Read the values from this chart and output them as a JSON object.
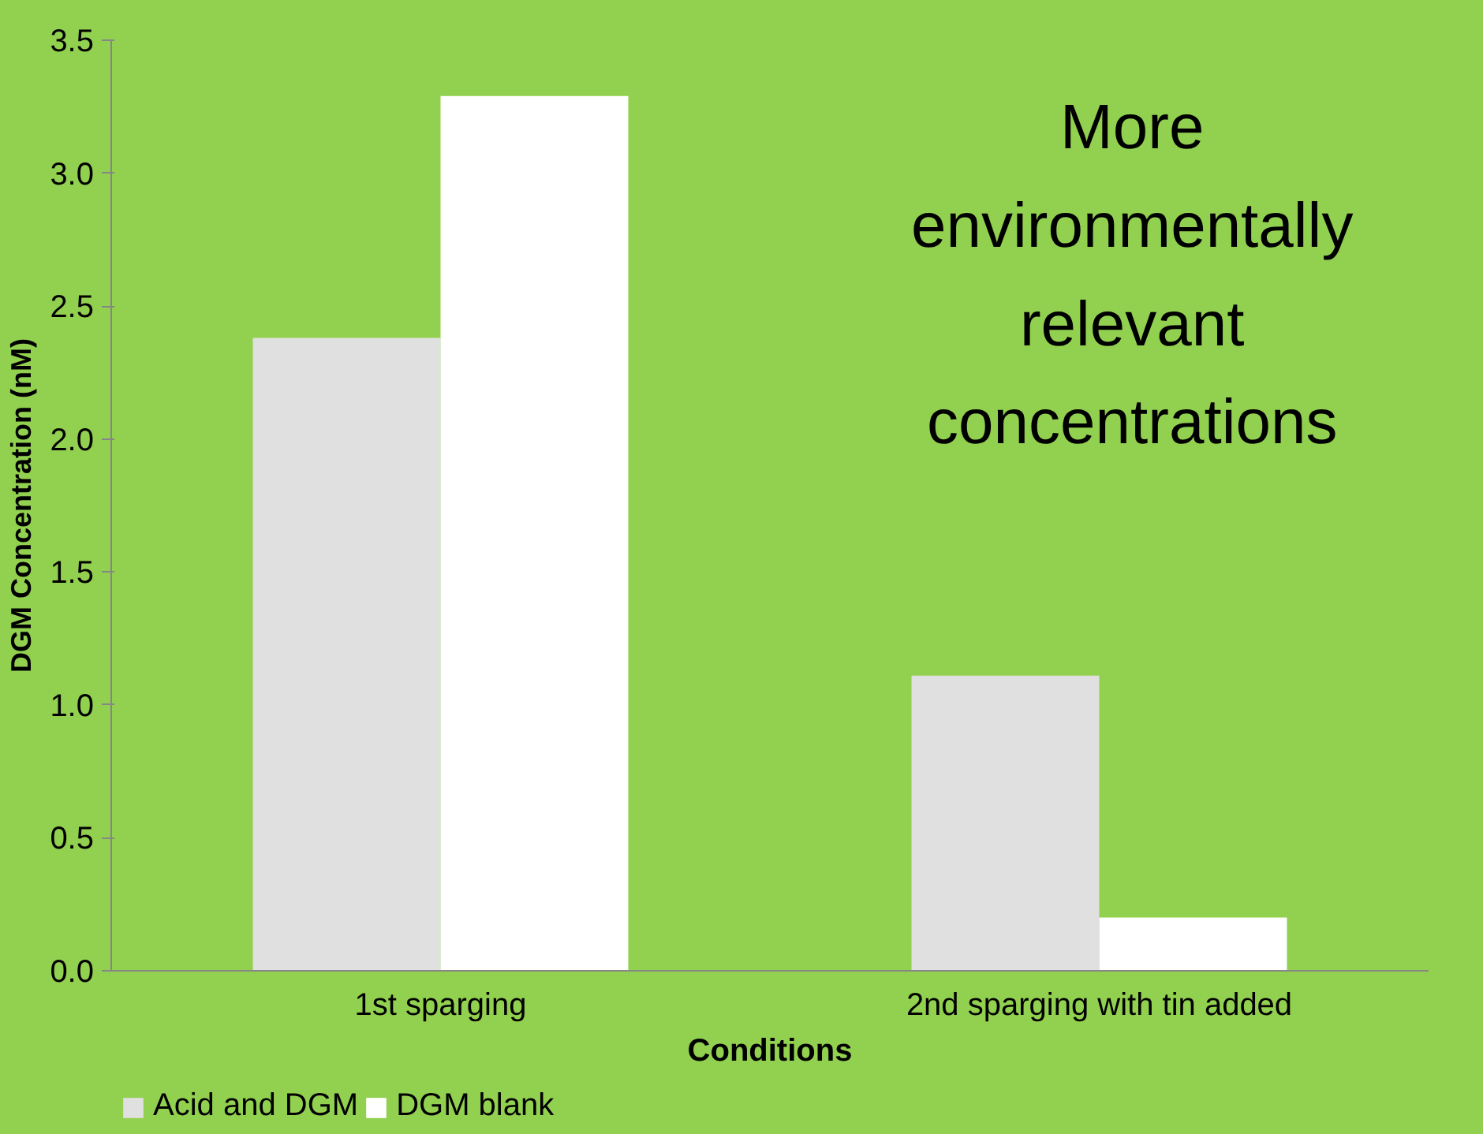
{
  "chart_data": {
    "type": "bar",
    "xlabel": "Conditions",
    "ylabel": "DGM Concentration (nM)",
    "categories": [
      "1st sparging",
      "2nd sparging with tin added"
    ],
    "series": [
      {
        "name": "Acid and DGM",
        "color": "#e0e0e0",
        "values": [
          2.38,
          1.11
        ]
      },
      {
        "name": "DGM blank",
        "color": "#ffffff",
        "values": [
          3.29,
          0.2
        ]
      }
    ],
    "ylim": [
      0,
      3.5
    ],
    "yticks": [
      {
        "value": 0,
        "label": "0.0"
      },
      {
        "value": 0.5,
        "label": "0.5"
      },
      {
        "value": 1,
        "label": "1.0"
      },
      {
        "value": 1.5,
        "label": "1.5"
      },
      {
        "value": 2,
        "label": "2.0"
      },
      {
        "value": 2.5,
        "label": "2.5"
      },
      {
        "value": 3,
        "label": "3.0"
      },
      {
        "value": 3.5,
        "label": "3.5"
      }
    ],
    "grid": false,
    "legend": "bottom left",
    "annotations": [
      "More environmentally relevant concentrations"
    ]
  }
}
